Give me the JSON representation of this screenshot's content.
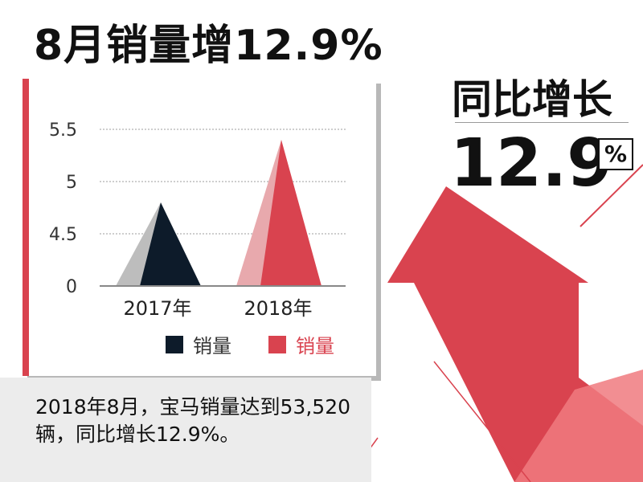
{
  "headline": "8月销量增12.9%",
  "stat": {
    "label": "同比增长",
    "value": "12.9",
    "unit": "%"
  },
  "caption": "2018年8月，宝马销量达到53,520辆，同比增长12.9%。",
  "colors": {
    "accent": "#d9434f",
    "accent_light": "#e8a9ad",
    "dark": "#0d1b2a",
    "gray": "#bdbdbd"
  },
  "chart_data": {
    "type": "bar",
    "categories": [
      "2017年",
      "2018年"
    ],
    "series": [
      {
        "name": "销量",
        "values": [
          4.8,
          5.4
        ],
        "color": "#0d1b2a"
      },
      {
        "name": "销量",
        "values": [
          4.8,
          5.4
        ],
        "color": "#d9434f"
      }
    ],
    "y_ticks": [
      "0",
      "4.5",
      "5",
      "5.5"
    ],
    "legend_position": "bottom-right",
    "grid": true
  }
}
